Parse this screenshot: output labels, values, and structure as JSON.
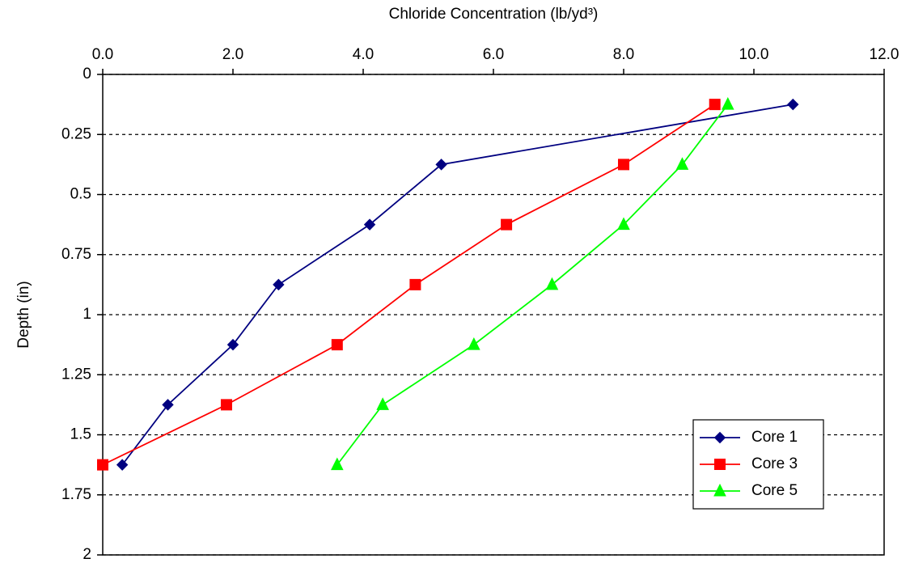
{
  "chart_data": {
    "type": "line",
    "title": "Chloride Concentration (lb/yd³)",
    "y_label": "Depth (in)",
    "xlim": [
      0,
      12
    ],
    "xticks": [
      {
        "value": 0,
        "label": "0.0"
      },
      {
        "value": 2,
        "label": "2.0"
      },
      {
        "value": 4,
        "label": "4.0"
      },
      {
        "value": 6,
        "label": "6.0"
      },
      {
        "value": 8,
        "label": "8.0"
      },
      {
        "value": 10,
        "label": "10.0"
      },
      {
        "value": 12,
        "label": "12.0"
      }
    ],
    "ylim": [
      0,
      2
    ],
    "yticks": [
      0,
      0.25,
      0.5,
      0.75,
      1,
      1.25,
      1.5,
      1.75,
      2
    ],
    "y_reversed": true,
    "x_axis_position": "top",
    "grid": true,
    "legend": "lower right",
    "series": [
      {
        "name": "Core 1",
        "color": "#000080",
        "marker": "diamond",
        "x": [
          10.6,
          5.2,
          4.1,
          2.7,
          2.0,
          1.0,
          0.3
        ],
        "values": [
          0.125,
          0.375,
          0.625,
          0.875,
          1.125,
          1.375,
          1.625
        ]
      },
      {
        "name": "Core 3",
        "color": "#ff0000",
        "marker": "square",
        "x": [
          9.4,
          8.0,
          6.2,
          4.8,
          3.6,
          1.9,
          0.0
        ],
        "values": [
          0.125,
          0.375,
          0.625,
          0.875,
          1.125,
          1.375,
          1.625
        ]
      },
      {
        "name": "Core 5",
        "color": "#00ff00",
        "marker": "triangle",
        "x": [
          9.6,
          8.9,
          8.0,
          6.9,
          5.7,
          4.3,
          3.6
        ],
        "values": [
          0.125,
          0.375,
          0.625,
          0.875,
          1.125,
          1.375,
          1.625
        ]
      }
    ]
  }
}
